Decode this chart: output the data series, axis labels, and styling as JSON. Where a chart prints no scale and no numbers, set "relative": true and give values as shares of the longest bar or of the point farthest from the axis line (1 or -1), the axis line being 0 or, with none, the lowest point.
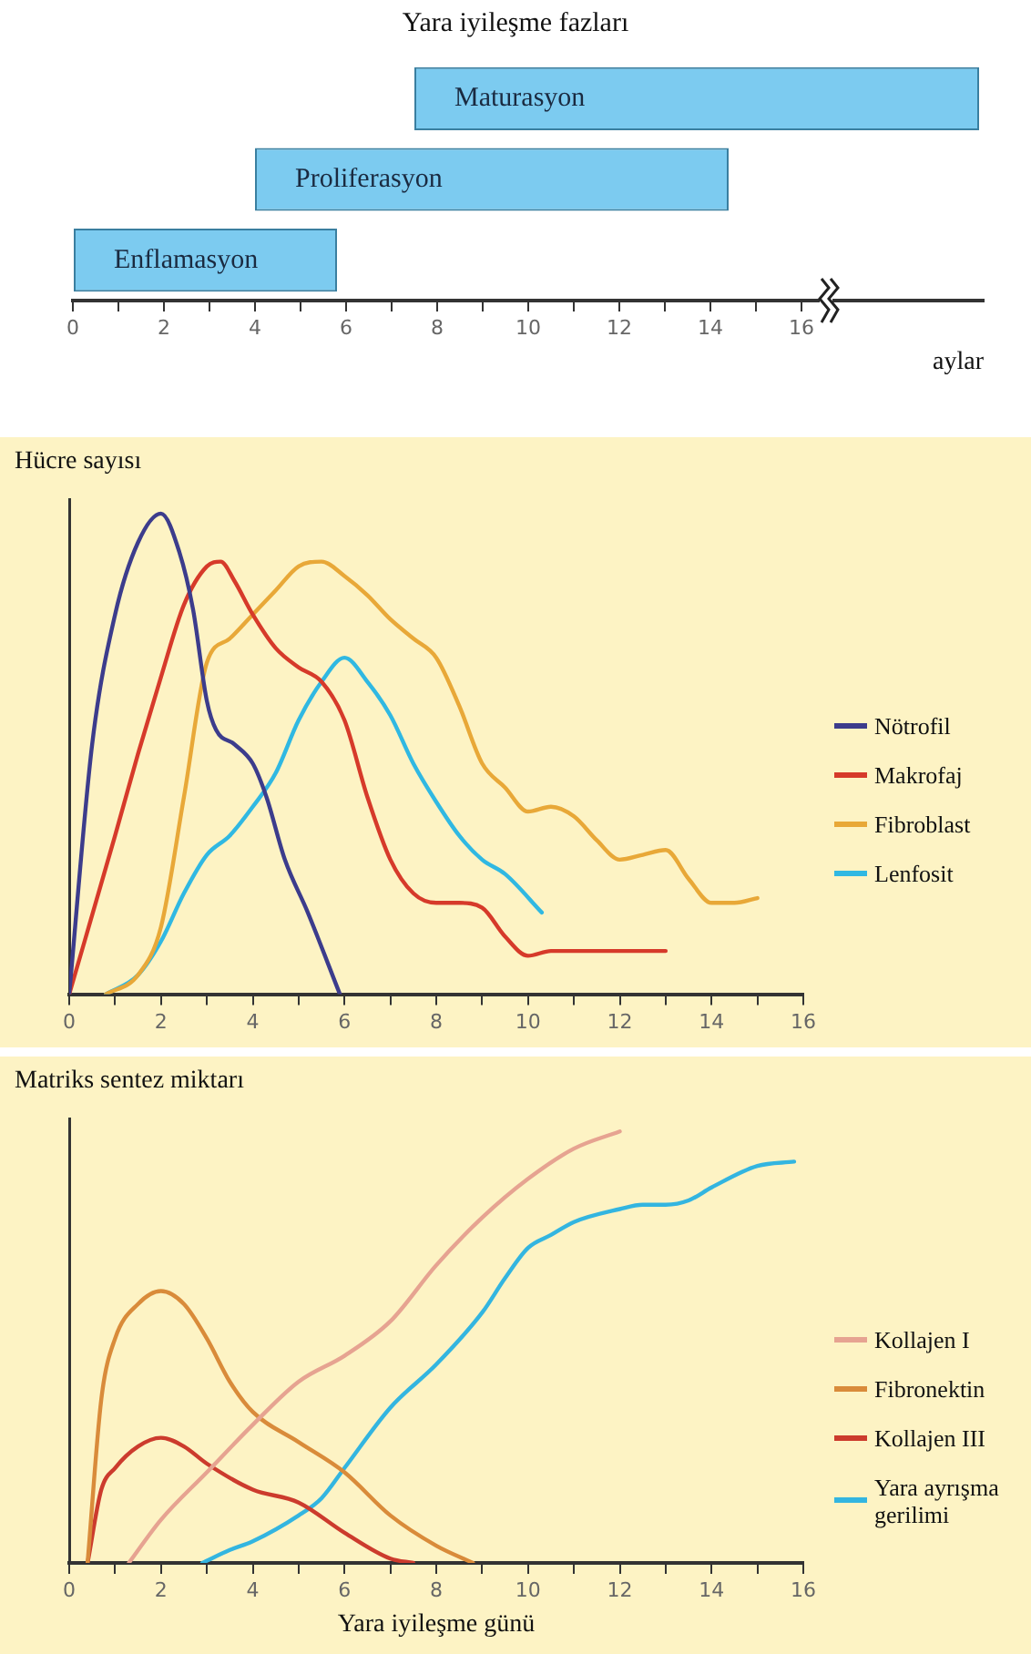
{
  "chart_data": [
    {
      "type": "bar",
      "title": "Yara iyileşme fazları",
      "xlabel": "aylar",
      "orientation": "horizontal",
      "categories": [
        "Maturasyon",
        "Proliferasyon",
        "Enflamasyon"
      ],
      "base": [
        7.5,
        4,
        0
      ],
      "values": [
        12.4,
        10.4,
        5.8
      ],
      "color": "#7ccbf0",
      "xlim": [
        0,
        20
      ],
      "xticks": [
        0,
        {
          "value": 1,
          "label": null
        },
        2,
        {
          "value": 3,
          "label": null
        },
        4,
        {
          "value": 5,
          "label": null
        },
        6,
        {
          "value": 7,
          "label": null
        },
        8,
        {
          "value": 9,
          "label": null
        },
        10,
        {
          "value": 11,
          "label": null
        },
        12,
        {
          "value": 13,
          "label": null
        },
        14,
        {
          "value": 15,
          "label": null
        },
        16
      ],
      "tick_labels": "x",
      "grid": false
    },
    {
      "type": "line",
      "ylabel": "Hücre sayısı",
      "relative": true,
      "legend": "right",
      "marker": "none",
      "line_style": "solid",
      "grid": false,
      "xlim": [
        0,
        16
      ],
      "xticks": [
        0,
        {
          "value": 1,
          "label": null
        },
        2,
        {
          "value": 3,
          "label": null
        },
        4,
        {
          "value": 5,
          "label": null
        },
        6,
        {
          "value": 7,
          "label": null
        },
        8,
        {
          "value": 9,
          "label": null
        },
        10,
        {
          "value": 11,
          "label": null
        },
        12,
        {
          "value": 13,
          "label": null
        },
        14,
        {
          "value": 15,
          "label": null
        },
        16
      ],
      "series": [
        {
          "name": "Nötrofil",
          "color": "#3c3c8c",
          "x": [
            0,
            0.5,
            1,
            1.5,
            2,
            2.4,
            2.7,
            3,
            3.2,
            3.6,
            4,
            4.3,
            4.7,
            5.2,
            5.9
          ],
          "values": [
            0,
            0.52,
            0.79,
            0.94,
            1,
            0.92,
            0.8,
            0.61,
            0.55,
            0.52,
            0.48,
            0.41,
            0.28,
            0.17,
            0
          ]
        },
        {
          "name": "Makrofaj",
          "color": "#d63a2a",
          "x": [
            0,
            1,
            1.5,
            2,
            2.5,
            3,
            3.3,
            3.6,
            4,
            4.5,
            5,
            5.5,
            6,
            6.5,
            7,
            7.5,
            8,
            8.5,
            9,
            9.5,
            10,
            10.5,
            11,
            13
          ],
          "values": [
            0,
            0.33,
            0.5,
            0.66,
            0.81,
            0.89,
            0.9,
            0.86,
            0.79,
            0.72,
            0.68,
            0.65,
            0.57,
            0.41,
            0.28,
            0.21,
            0.19,
            0.19,
            0.18,
            0.12,
            0.08,
            0.09,
            0.09,
            0.09
          ]
        },
        {
          "name": "Fibroblast",
          "color": "#e8a838",
          "x": [
            0.8,
            1.5,
            2,
            2.5,
            3,
            3.5,
            4,
            4.5,
            5,
            5.5,
            6,
            6.5,
            7,
            7.5,
            8,
            8.5,
            9,
            9.5,
            10,
            10.5,
            11,
            11.5,
            12,
            12.5,
            13,
            13.5,
            14,
            14.5,
            15
          ],
          "values": [
            0,
            0.04,
            0.14,
            0.41,
            0.69,
            0.74,
            0.79,
            0.84,
            0.89,
            0.9,
            0.87,
            0.83,
            0.78,
            0.74,
            0.7,
            0.6,
            0.48,
            0.43,
            0.38,
            0.39,
            0.37,
            0.32,
            0.28,
            0.29,
            0.3,
            0.24,
            0.19,
            0.19,
            0.2
          ]
        },
        {
          "name": "Lenfosit",
          "color": "#30b8e2",
          "x": [
            0.8,
            1.5,
            2,
            2.5,
            3,
            3.5,
            4,
            4.5,
            5,
            5.5,
            6,
            6.5,
            7,
            7.5,
            8,
            8.5,
            9,
            9.5,
            10.3
          ],
          "values": [
            0,
            0.04,
            0.11,
            0.21,
            0.29,
            0.33,
            0.39,
            0.46,
            0.57,
            0.65,
            0.7,
            0.65,
            0.58,
            0.48,
            0.4,
            0.33,
            0.28,
            0.25,
            0.17
          ]
        }
      ]
    },
    {
      "type": "line",
      "ylabel": "Matriks sentez miktarı",
      "xlabel": "Yara iyileşme günü",
      "relative": true,
      "legend": "right",
      "marker": "none",
      "line_style": "solid",
      "grid": false,
      "xlim": [
        0,
        16
      ],
      "xticks": [
        0,
        {
          "value": 1,
          "label": null
        },
        2,
        {
          "value": 3,
          "label": null
        },
        4,
        {
          "value": 5,
          "label": null
        },
        6,
        {
          "value": 7,
          "label": null
        },
        8,
        {
          "value": 9,
          "label": null
        },
        10,
        {
          "value": 11,
          "label": null
        },
        12,
        {
          "value": 13,
          "label": null
        },
        14,
        {
          "value": 15,
          "label": null
        },
        16
      ],
      "series": [
        {
          "name": "Kollajen I",
          "color": "#e6a391",
          "x": [
            1.3,
            2,
            3,
            4,
            5,
            6,
            7,
            8,
            9,
            10,
            11,
            12
          ],
          "values": [
            0,
            0.1,
            0.21,
            0.32,
            0.42,
            0.48,
            0.56,
            0.69,
            0.8,
            0.89,
            0.96,
            1
          ]
        },
        {
          "name": "Fibronektin",
          "color": "#d98b3a",
          "x": [
            0.4,
            0.7,
            1,
            1.5,
            2,
            2.5,
            3,
            3.5,
            4,
            5,
            6,
            7,
            8,
            8.8
          ],
          "values": [
            0,
            0.38,
            0.52,
            0.6,
            0.63,
            0.6,
            0.52,
            0.42,
            0.35,
            0.28,
            0.21,
            0.11,
            0.04,
            0
          ]
        },
        {
          "name": "Kollajen III",
          "color": "#cc3b2d",
          "x": [
            0.4,
            0.7,
            1,
            1.5,
            2,
            2.5,
            3,
            4,
            5,
            6,
            7,
            7.5
          ],
          "values": [
            0,
            0.17,
            0.22,
            0.27,
            0.29,
            0.27,
            0.23,
            0.17,
            0.14,
            0.07,
            0.01,
            0
          ]
        },
        {
          "name": "Yara ayrışma gerilimi",
          "color": "#33b5e0",
          "x": [
            2.9,
            3.5,
            4,
            5,
            5.5,
            6,
            7,
            8,
            9,
            9.5,
            10,
            10.5,
            11,
            12,
            12.5,
            13,
            13.5,
            14,
            15,
            15.8
          ],
          "values": [
            0,
            0.03,
            0.05,
            0.11,
            0.15,
            0.22,
            0.36,
            0.46,
            0.58,
            0.66,
            0.73,
            0.76,
            0.79,
            0.82,
            0.83,
            0.83,
            0.84,
            0.87,
            0.92,
            0.93
          ]
        }
      ]
    }
  ]
}
